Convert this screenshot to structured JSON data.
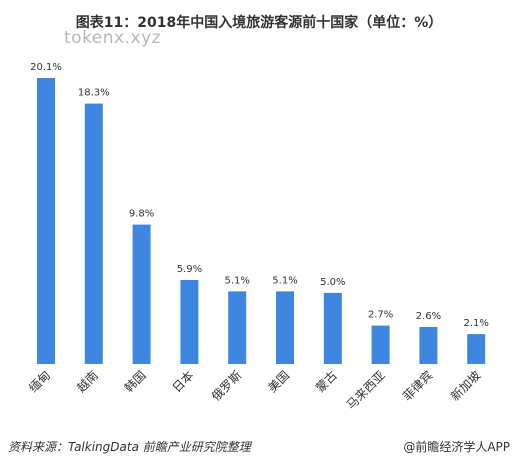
{
  "chart_data": {
    "type": "bar",
    "title": "图表11：2018年中国入境旅游客源前十国家（单位：%）",
    "categories": [
      "缅甸",
      "越南",
      "韩国",
      "日本",
      "俄罗斯",
      "美国",
      "蒙古",
      "马来西亚",
      "菲律宾",
      "新加坡"
    ],
    "values": [
      20.1,
      18.3,
      9.8,
      5.9,
      5.1,
      5.1,
      5.0,
      2.7,
      2.6,
      2.1
    ],
    "data_labels": [
      "20.1%",
      "18.3%",
      "9.8%",
      "5.9%",
      "5.1%",
      "5.1%",
      "5.0%",
      "2.7%",
      "2.6%",
      "2.1%"
    ],
    "xlabel": "",
    "ylabel": "",
    "ylim": [
      0,
      20.1
    ],
    "grid": false,
    "legend": "none",
    "bar_color": "#3f86e0"
  },
  "watermark": "tokenx.xyz",
  "footer": {
    "source": "资料来源：TalkingData 前瞻产业研究院整理",
    "credit": "@前瞻经济学人APP"
  }
}
